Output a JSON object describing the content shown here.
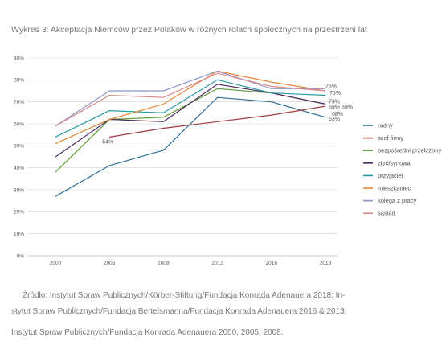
{
  "chart_data": {
    "type": "line",
    "title": "Wykres 3: Akceptacja Niemców przez Polaków w różnych rolach społecznych na przestrzeni lat",
    "x": [
      "2000",
      "2005",
      "2008",
      "2013",
      "2016",
      "2018"
    ],
    "yticks": [
      "0%",
      "10%",
      "20%",
      "30%",
      "40%",
      "50%",
      "60%",
      "70%",
      "80%",
      "90%"
    ],
    "ylim": [
      0,
      90
    ],
    "grid": true,
    "legend_position": "right",
    "series": [
      {
        "name": "radny",
        "color": "#2e6f96",
        "values": [
          27,
          41,
          48,
          72,
          70,
          63
        ]
      },
      {
        "name": "szef firmy",
        "color": "#a23a3a",
        "values": [
          null,
          54,
          58,
          61,
          64,
          68
        ]
      },
      {
        "name": "bezpośredni przełożony",
        "color": "#5d9b3a",
        "values": [
          38,
          62,
          63,
          76,
          74,
          69
        ]
      },
      {
        "name": "zięć/synowa",
        "color": "#4b2a5e",
        "values": [
          45,
          62,
          61,
          78,
          74,
          69
        ]
      },
      {
        "name": "przyjaciel",
        "color": "#2a9aa8",
        "values": [
          54,
          66,
          65,
          80,
          74,
          73
        ]
      },
      {
        "name": "mieszkaniec",
        "color": "#e6873a",
        "values": [
          51,
          62,
          69,
          84,
          79,
          75
        ]
      },
      {
        "name": "kolega z pracy",
        "color": "#8d95c8",
        "values": [
          59,
          75,
          75,
          84,
          76,
          76
        ]
      },
      {
        "name": "sąsiad",
        "color": "#d98c8c",
        "values": [
          59,
          73,
          72,
          83,
          77,
          75
        ]
      }
    ],
    "annotations": [
      {
        "text": "54%",
        "x": "2005",
        "y": 54
      },
      {
        "text": "76%",
        "x": "2018",
        "y": 76
      },
      {
        "text": "75%",
        "x": "2018",
        "y": 75
      },
      {
        "text": "73%",
        "x": "2018",
        "y": 73
      },
      {
        "text": "69%",
        "x": "2018",
        "y": 69
      },
      {
        "text": "69%",
        "x": "2018",
        "y": 69
      },
      {
        "text": "68%",
        "x": "2018",
        "y": 68
      },
      {
        "text": "63%",
        "x": "2018",
        "y": 63
      }
    ]
  },
  "source": {
    "line1": "Źródło: Instytut Spraw Publicznych/Körber-Stiftung/Fundacja Konrada Adenauera 2018; In-",
    "line2": "stytut Spraw Publicznych/Fundacja Bertelsmanna/Fundacja Konrada Adenauera 2016 & 2013;",
    "line3": "Instytut Spraw Publicznych/Fundacja Konrada Adenauera 2000, 2005, 2008."
  }
}
